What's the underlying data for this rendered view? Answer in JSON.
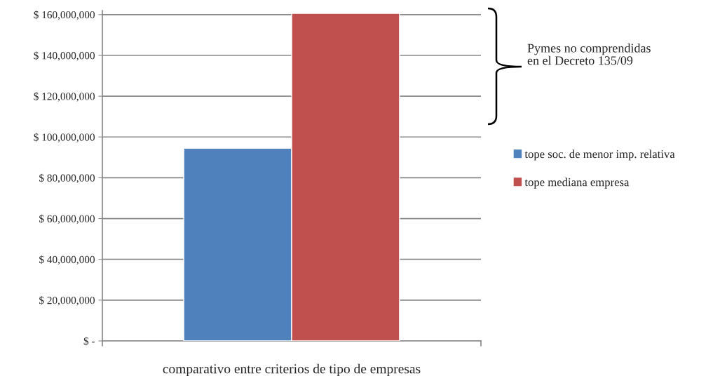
{
  "chart_data": {
    "type": "bar",
    "categories": [
      null
    ],
    "xlabel": "comparativo entre criterios de tipo de empresas",
    "series": [
      {
        "name": "tope soc. de menor imp. relativa",
        "color": "#4f81bd",
        "values": [
          94500000
        ]
      },
      {
        "name": "tope mediana empresa",
        "color": "#c0504d",
        "values": [
          160600000
        ]
      }
    ],
    "ylim": [
      0,
      162000000
    ],
    "yticks": [
      {
        "value": 0,
        "label": "$ -"
      },
      {
        "value": 20000000,
        "label": "$ 20,000,000"
      },
      {
        "value": 40000000,
        "label": "$ 40,000,000"
      },
      {
        "value": 60000000,
        "label": "$ 60,000,000"
      },
      {
        "value": 80000000,
        "label": "$ 80,000,000"
      },
      {
        "value": 100000000,
        "label": "$ 100,000,000"
      },
      {
        "value": 120000000,
        "label": "$ 120,000,000"
      },
      {
        "value": 140000000,
        "label": "$ 140,000,000"
      },
      {
        "value": 160000000,
        "label": "$ 160,000,000"
      }
    ],
    "grid": "y",
    "legend": "right",
    "annotations": [
      "Pymes no comprendidas\nen el Decreto 135/09"
    ]
  }
}
